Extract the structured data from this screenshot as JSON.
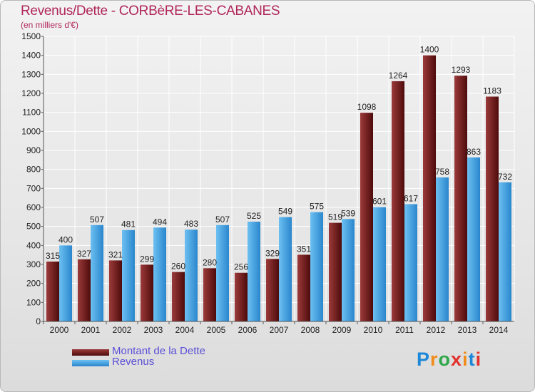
{
  "title": "Revenus/Dette - CORBèRE-LES-CABANES",
  "subtitle": "(en milliers d'€)",
  "logo_text": "Proxiti",
  "colors": {
    "debt": "#7a1a1a",
    "revenue": "#3d9de0",
    "title": "#b0265a",
    "legend_text": "#5a4fd6"
  },
  "chart_data": {
    "type": "bar",
    "title": "Revenus/Dette - CORBèRE-LES-CABANES",
    "ylabel": "(en milliers d'€)",
    "xlabel": "",
    "ylim": [
      0,
      1500
    ],
    "yticks": [
      0,
      100,
      200,
      300,
      400,
      500,
      600,
      700,
      800,
      900,
      1000,
      1100,
      1200,
      1300,
      1400,
      1500
    ],
    "grid": true,
    "legend_position": "bottom-left",
    "categories": [
      "2000",
      "2001",
      "2002",
      "2003",
      "2004",
      "2005",
      "2006",
      "2007",
      "2008",
      "2009",
      "2010",
      "2011",
      "2012",
      "2013",
      "2014"
    ],
    "series": [
      {
        "name": "Montant de la Dette",
        "values": [
          315,
          327,
          321,
          299,
          260,
          280,
          256,
          329,
          351,
          519,
          1098,
          1264,
          1400,
          1293,
          1183
        ]
      },
      {
        "name": "Revenus",
        "values": [
          400,
          507,
          481,
          494,
          483,
          507,
          525,
          549,
          575,
          539,
          601,
          617,
          758,
          863,
          732
        ]
      }
    ]
  }
}
